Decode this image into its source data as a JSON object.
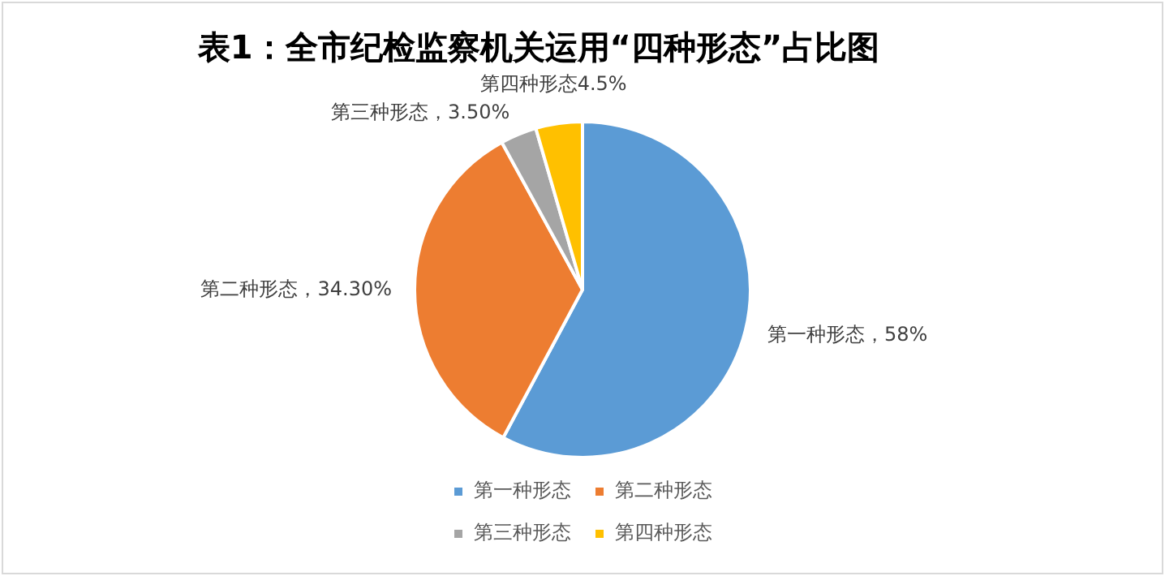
{
  "chart_data": {
    "type": "pie",
    "title": "表1：全市纪检监察机关运用“四种形态”占比图",
    "categories": [
      "第一种形态",
      "第二种形态",
      "第三种形态",
      "第四种形态"
    ],
    "values": [
      58,
      34.3,
      3.5,
      4.5
    ],
    "colors": [
      "#5b9bd5",
      "#ed7d31",
      "#a5a5a5",
      "#ffc000"
    ],
    "value_labels": [
      "第一种形态，58%",
      "第二种形态，34.30%",
      "第三种形态，3.50%",
      "第四种形态4.5%"
    ],
    "legend": "bottom"
  }
}
